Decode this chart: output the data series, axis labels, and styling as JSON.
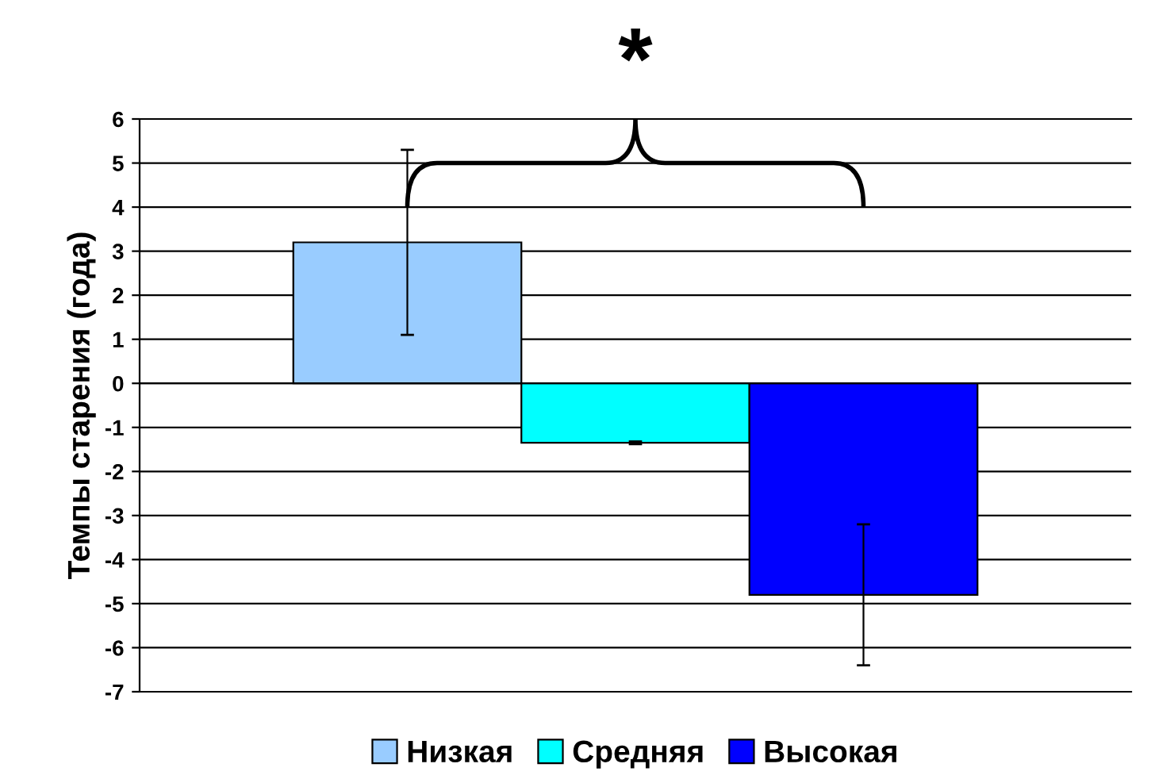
{
  "chart_data": {
    "type": "bar",
    "ylabel": "Темпы старения (года)",
    "categories": [
      null
    ],
    "series": [
      {
        "name": "Низкая",
        "color": "#99ccff",
        "values": [
          3.2
        ],
        "errors": [
          2.1
        ]
      },
      {
        "name": "Средняя",
        "color": "#00ffff",
        "values": [
          -1.35
        ],
        "errors": [
          0.03
        ]
      },
      {
        "name": "Высокая",
        "color": "#0000ff",
        "values": [
          -4.8
        ],
        "errors": [
          1.6
        ]
      }
    ],
    "ylim": [
      -7,
      6
    ],
    "yticks": [
      -7,
      -6,
      -5,
      -4,
      -3,
      -2,
      -1,
      0,
      1,
      2,
      3,
      4,
      5,
      6
    ],
    "grid": "y",
    "legend": "bottom",
    "annotations": [
      "*"
    ]
  }
}
